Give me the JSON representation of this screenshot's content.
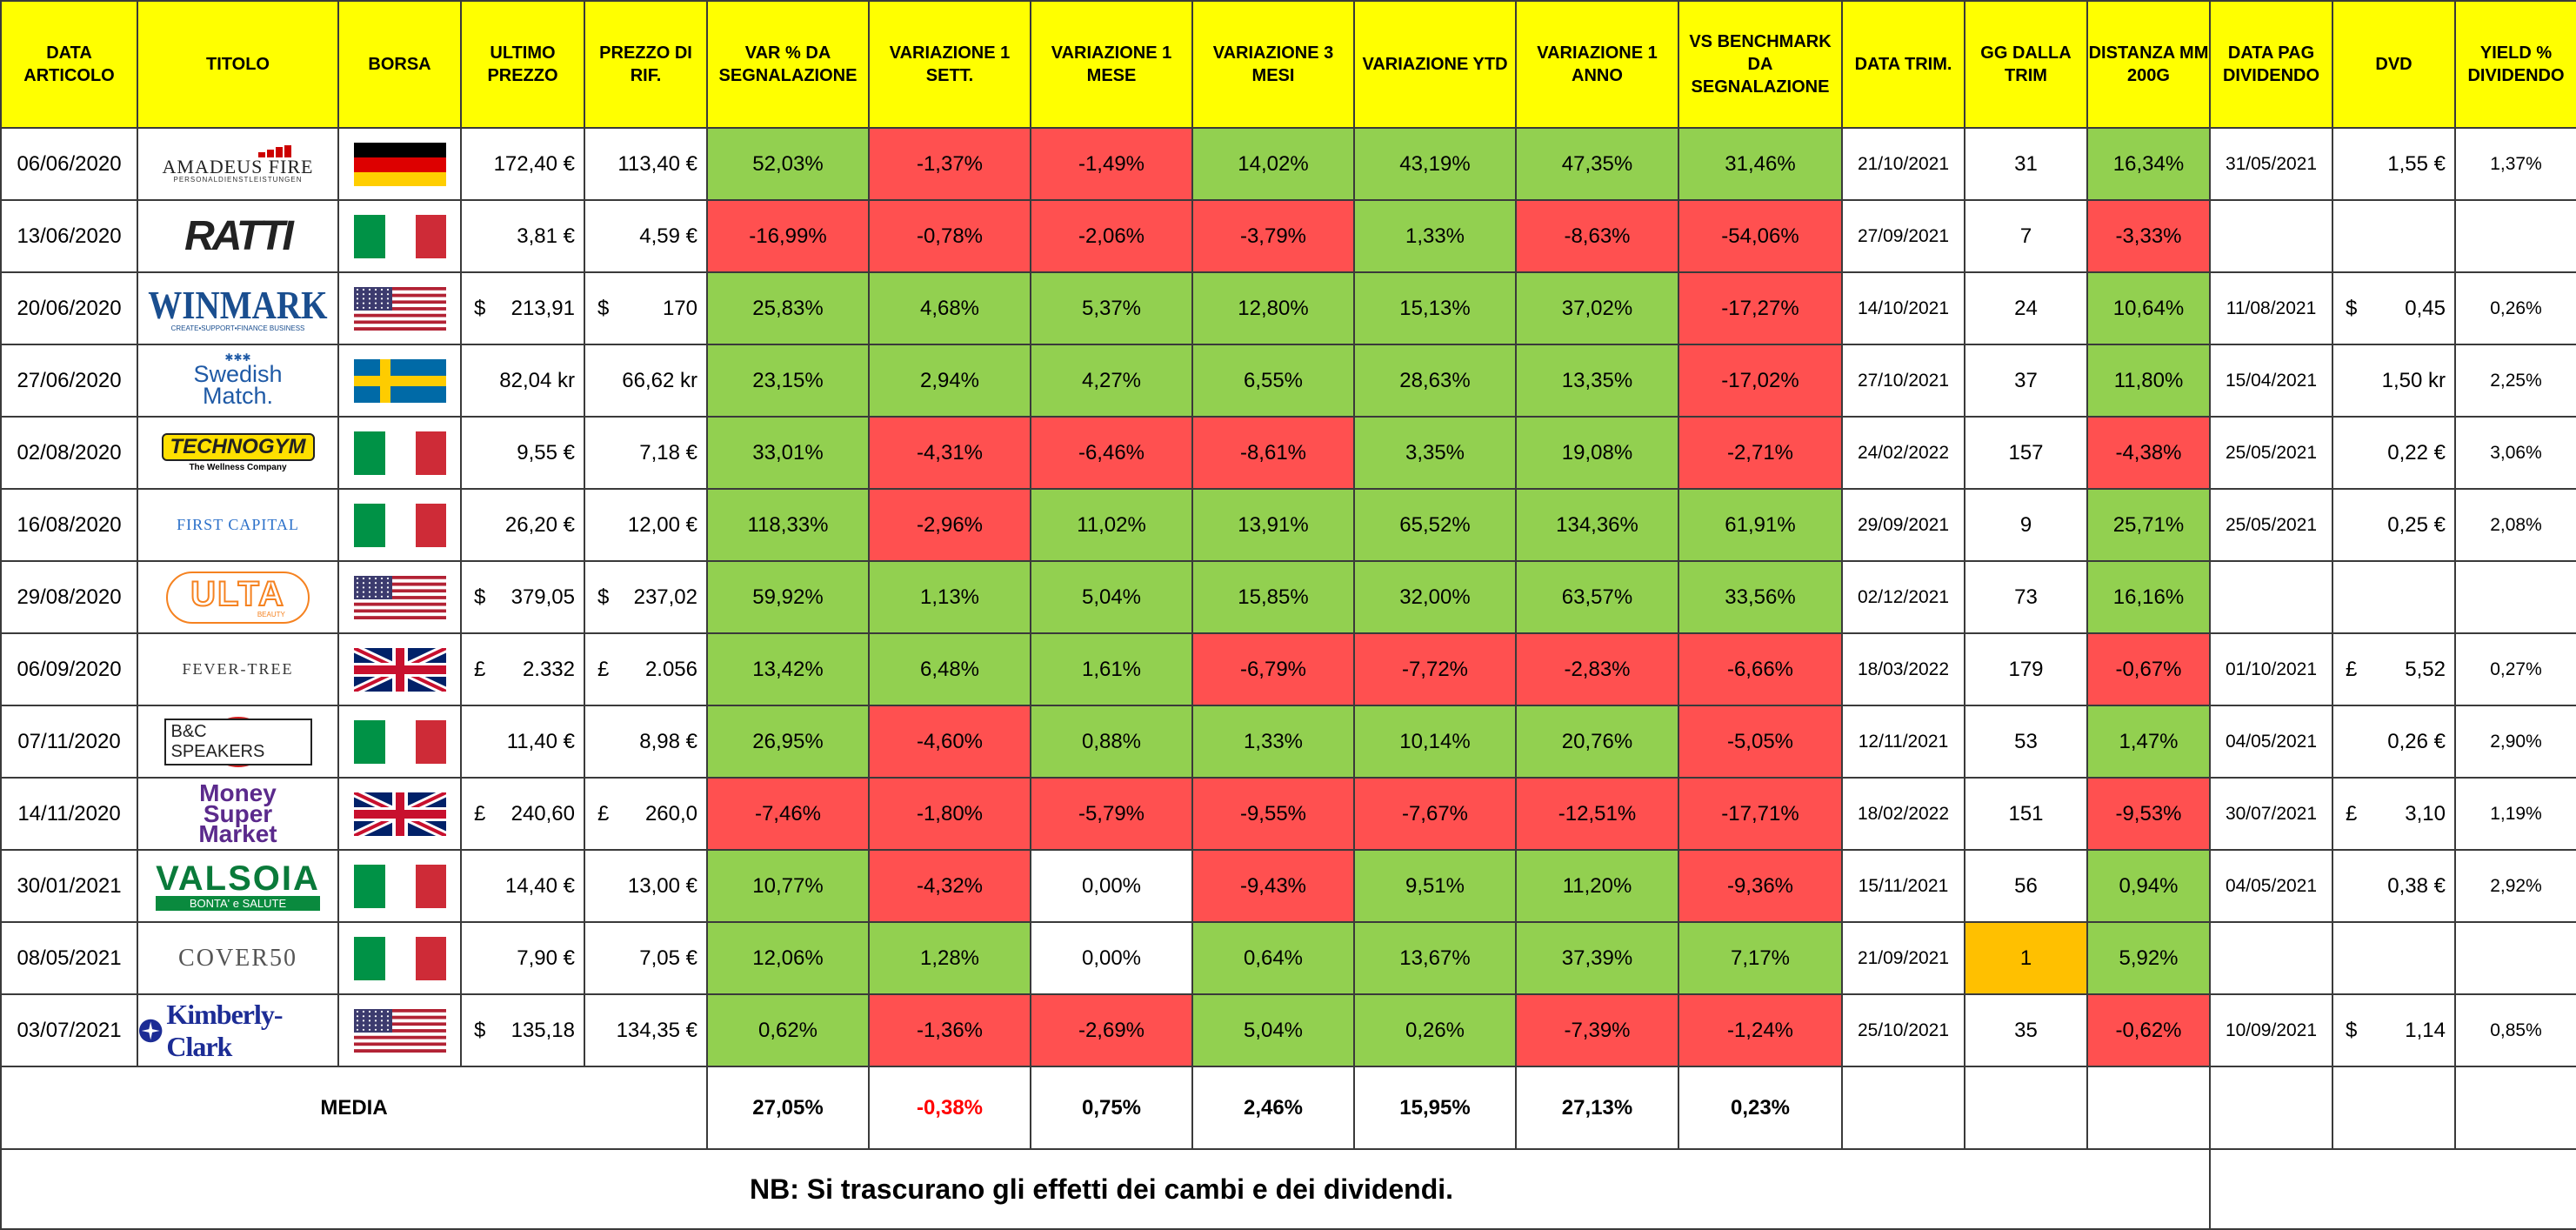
{
  "headers": [
    "DATA ARTICOLO",
    "TITOLO",
    "BORSA",
    "ULTIMO PREZZO",
    "PREZZO DI RIF.",
    "VAR % DA SEGNALAZIONE",
    "VARIAZIONE 1 SETT.",
    "VARIAZIONE 1 MESE",
    "VARIAZIONE 3 MESI",
    "VARIAZIONE YTD",
    "VARIAZIONE 1 ANNO",
    "VS BENCHMARK DA SEGNALAZIONE",
    "DATA TRIM.",
    "GG DALLA TRIM",
    "DISTANZA MM 200G",
    "DATA PAG DIVIDENDO",
    "DVD",
    "YIELD % DIVIDENDO"
  ],
  "colors": {
    "header": "#ffff00",
    "green": "#92d050",
    "red": "#ff5050",
    "orange": "#ffc000"
  },
  "rows": [
    {
      "data": "06/06/2020",
      "logo": "AMADEUS FIRE",
      "logo_sub": "PERSONALDIENSTLEISTUNGEN",
      "flag": "germany",
      "ultimo": "172,40 €",
      "rif": "113,40 €",
      "var": "52,03%",
      "s1": "-1,37%",
      "m1": "-1,49%",
      "m3": "14,02%",
      "ytd": "43,19%",
      "a1": "47,35%",
      "bench": "31,46%",
      "trim": "21/10/2021",
      "gg": "31",
      "mm": "16,34%",
      "pag": "31/05/2021",
      "dvd": "1,55 €",
      "yield": "1,37%"
    },
    {
      "data": "13/06/2020",
      "logo": "RATTI",
      "logo_sub": "",
      "flag": "italy",
      "ultimo": "3,81 €",
      "rif": "4,59 €",
      "var": "-16,99%",
      "s1": "-0,78%",
      "m1": "-2,06%",
      "m3": "-3,79%",
      "ytd": "1,33%",
      "a1": "-8,63%",
      "bench": "-54,06%",
      "trim": "27/09/2021",
      "gg": "7",
      "mm": "-3,33%",
      "pag": "",
      "dvd": "",
      "yield": ""
    },
    {
      "data": "20/06/2020",
      "logo": "WINMARK",
      "logo_sub": "CREATE•SUPPORT•FINANCE BUSINESS",
      "flag": "usa",
      "ultimo_sym": "$",
      "ultimo_val": "213,91",
      "rif_sym": "$",
      "rif_val": "170",
      "var": "25,83%",
      "s1": "4,68%",
      "m1": "5,37%",
      "m3": "12,80%",
      "ytd": "15,13%",
      "a1": "37,02%",
      "bench": "-17,27%",
      "trim": "14/10/2021",
      "gg": "24",
      "mm": "10,64%",
      "pag": "11/08/2021",
      "dvd_sym": "$",
      "dvd_val": "0,45",
      "yield": "0,26%"
    },
    {
      "data": "27/06/2020",
      "logo": "Swedish",
      "logo2": "Match.",
      "flag": "sweden",
      "ultimo": "82,04 kr",
      "rif": "66,62 kr",
      "var": "23,15%",
      "s1": "2,94%",
      "m1": "4,27%",
      "m3": "6,55%",
      "ytd": "28,63%",
      "a1": "13,35%",
      "bench": "-17,02%",
      "trim": "27/10/2021",
      "gg": "37",
      "mm": "11,80%",
      "pag": "15/04/2021",
      "dvd": "1,50 kr",
      "yield": "2,25%"
    },
    {
      "data": "02/08/2020",
      "logo": "TECHNOGYM",
      "logo_sub": "The Wellness Company",
      "flag": "italy",
      "ultimo": "9,55 €",
      "rif": "7,18 €",
      "var": "33,01%",
      "s1": "-4,31%",
      "m1": "-6,46%",
      "m3": "-8,61%",
      "ytd": "3,35%",
      "a1": "19,08%",
      "bench": "-2,71%",
      "trim": "24/02/2022",
      "gg": "157",
      "mm": "-4,38%",
      "pag": "25/05/2021",
      "dvd": "0,22 €",
      "yield": "3,06%"
    },
    {
      "data": "16/08/2020",
      "logo": "FIRST CAPITAL",
      "logo_sub": "",
      "flag": "italy",
      "ultimo": "26,20 €",
      "rif": "12,00 €",
      "var": "118,33%",
      "s1": "-2,96%",
      "m1": "11,02%",
      "m3": "13,91%",
      "ytd": "65,52%",
      "a1": "134,36%",
      "bench": "61,91%",
      "trim": "29/09/2021",
      "gg": "9",
      "mm": "25,71%",
      "pag": "25/05/2021",
      "dvd": "0,25 €",
      "yield": "2,08%"
    },
    {
      "data": "29/08/2020",
      "logo": "ULTA",
      "logo_sub": "BEAUTY",
      "flag": "usa",
      "ultimo_sym": "$",
      "ultimo_val": "379,05",
      "rif_sym": "$",
      "rif_val": "237,02",
      "var": "59,92%",
      "s1": "1,13%",
      "m1": "5,04%",
      "m3": "15,85%",
      "ytd": "32,00%",
      "a1": "63,57%",
      "bench": "33,56%",
      "trim": "02/12/2021",
      "gg": "73",
      "mm": "16,16%",
      "pag": "",
      "dvd": "",
      "yield": ""
    },
    {
      "data": "06/09/2020",
      "logo": "FEVER-TREE",
      "logo_sub": "",
      "flag": "uk",
      "ultimo_sym": "£",
      "ultimo_val": "2.332",
      "rif_sym": "£",
      "rif_val": "2.056",
      "var": "13,42%",
      "s1": "6,48%",
      "m1": "1,61%",
      "m3": "-6,79%",
      "ytd": "-7,72%",
      "a1": "-2,83%",
      "bench": "-6,66%",
      "trim": "18/03/2022",
      "gg": "179",
      "mm": "-0,67%",
      "pag": "01/10/2021",
      "dvd_sym": "£",
      "dvd_val": "5,52",
      "yield": "0,27%"
    },
    {
      "data": "07/11/2020",
      "logo": "B&C SPEAKERS",
      "logo_sub": "",
      "flag": "italy",
      "ultimo": "11,40 €",
      "rif": "8,98 €",
      "var": "26,95%",
      "s1": "-4,60%",
      "m1": "0,88%",
      "m3": "1,33%",
      "ytd": "10,14%",
      "a1": "20,76%",
      "bench": "-5,05%",
      "trim": "12/11/2021",
      "gg": "53",
      "mm": "1,47%",
      "pag": "04/05/2021",
      "dvd": "0,26 €",
      "yield": "2,90%"
    },
    {
      "data": "14/11/2020",
      "logo": "Money",
      "logo2": "Super",
      "logo3": "Market",
      "flag": "uk",
      "ultimo_sym": "£",
      "ultimo_val": "240,60",
      "rif_sym": "£",
      "rif_val": "260,0",
      "var": "-7,46%",
      "s1": "-1,80%",
      "m1": "-5,79%",
      "m3": "-9,55%",
      "ytd": "-7,67%",
      "a1": "-12,51%",
      "bench": "-17,71%",
      "trim": "18/02/2022",
      "gg": "151",
      "mm": "-9,53%",
      "pag": "30/07/2021",
      "dvd_sym": "£",
      "dvd_val": "3,10",
      "yield": "1,19%"
    },
    {
      "data": "30/01/2021",
      "logo": "VALSOIA",
      "logo_sub": "BONTA' e SALUTE",
      "flag": "italy",
      "ultimo": "14,40 €",
      "rif": "13,00 €",
      "var": "10,77%",
      "s1": "-4,32%",
      "m1": "0,00%",
      "m3": "-9,43%",
      "ytd": "9,51%",
      "a1": "11,20%",
      "bench": "-9,36%",
      "trim": "15/11/2021",
      "gg": "56",
      "mm": "0,94%",
      "pag": "04/05/2021",
      "dvd": "0,38 €",
      "yield": "2,92%"
    },
    {
      "data": "08/05/2021",
      "logo": "COVER50",
      "logo_sub": "",
      "flag": "italy",
      "ultimo": "7,90 €",
      "rif": "7,05 €",
      "var": "12,06%",
      "s1": "1,28%",
      "m1": "0,00%",
      "m3": "0,64%",
      "ytd": "13,67%",
      "a1": "37,39%",
      "bench": "7,17%",
      "trim": "21/09/2021",
      "gg": "1",
      "mm": "5,92%",
      "pag": "",
      "dvd": "",
      "yield": ""
    },
    {
      "data": "03/07/2021",
      "logo": "Kimberly-Clark",
      "logo_sub": "",
      "flag": "usa",
      "ultimo_sym": "$",
      "ultimo_val": "135,18",
      "rif": "134,35 €",
      "var": "0,62%",
      "s1": "-1,36%",
      "m1": "-2,69%",
      "m3": "5,04%",
      "ytd": "0,26%",
      "a1": "-7,39%",
      "bench": "-1,24%",
      "trim": "25/10/2021",
      "gg": "35",
      "mm": "-0,62%",
      "pag": "10/09/2021",
      "dvd_sym": "$",
      "dvd_val": "1,14",
      "yield": "0,85%"
    }
  ],
  "media": {
    "label": "MEDIA",
    "var": "27,05%",
    "s1": "-0,38%",
    "m1": "0,75%",
    "m3": "2,46%",
    "ytd": "15,95%",
    "a1": "27,13%",
    "bench": "0,23%"
  },
  "note": "NB: Si trascurano gli effetti dei cambi e dei dividendi."
}
